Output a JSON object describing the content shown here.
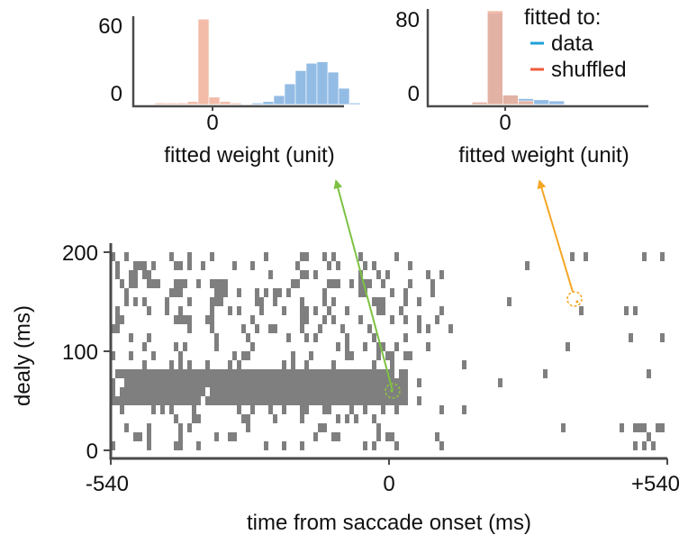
{
  "chart_data": [
    {
      "type": "bar",
      "panel": "histogram-left",
      "xlabel": "fitted weight (unit)",
      "x_ticks": [
        "0"
      ],
      "y_ticks": [
        "0",
        "60"
      ],
      "ylim": [
        0,
        60
      ],
      "bin_edges": [
        -1.0,
        -0.8,
        -0.6,
        -0.4,
        -0.2,
        0.0,
        0.2,
        0.4,
        0.6,
        0.8,
        1.0,
        1.2,
        1.4,
        1.6,
        1.8,
        2.0,
        2.2,
        2.4,
        2.6,
        2.8,
        3.0
      ],
      "series": [
        {
          "name": "data",
          "color": "#80b0e0",
          "values": [
            0,
            0,
            0,
            0,
            0,
            0,
            0,
            0,
            0,
            0,
            1,
            2,
            6,
            14,
            23,
            28,
            29,
            22,
            11,
            1
          ]
        },
        {
          "name": "shuffled",
          "color": "#f0b09a",
          "values": [
            0,
            1,
            1,
            1,
            2,
            58,
            5,
            2,
            1,
            0,
            0,
            0,
            0,
            0,
            0,
            0,
            0,
            0,
            0,
            0
          ]
        }
      ]
    },
    {
      "type": "bar",
      "panel": "histogram-right",
      "xlabel": "fitted weight (unit)",
      "x_ticks": [
        "0"
      ],
      "y_ticks": [
        "0",
        "80"
      ],
      "ylim": [
        0,
        80
      ],
      "bin_edges": [
        -0.8,
        -0.6,
        -0.4,
        -0.2,
        0.0,
        0.2,
        0.4,
        0.6,
        0.8,
        1.0,
        1.2,
        1.4,
        1.6
      ],
      "series": [
        {
          "name": "data",
          "color": "#80b0e0",
          "values": [
            0,
            0,
            2,
            78,
            8,
            5,
            4,
            3,
            0,
            0,
            0,
            0
          ]
        },
        {
          "name": "shuffled",
          "color": "#f0b09a",
          "values": [
            0,
            0,
            2,
            80,
            8,
            3,
            0,
            0,
            0,
            0,
            0,
            0
          ]
        }
      ],
      "legend": {
        "title": "fitted to:",
        "entries": [
          {
            "label": "data",
            "color": "#1fa0d8"
          },
          {
            "label": "shuffled",
            "color": "#f05a3c"
          }
        ],
        "placement": "top-right"
      }
    },
    {
      "type": "heatmap",
      "panel": "raster",
      "xlabel": "time from saccade onset (ms)",
      "ylabel": "dealy (ms)",
      "xlim": [
        -540,
        540
      ],
      "ylim": [
        0,
        200
      ],
      "x_ticks": [
        "-540",
        "0",
        "+540"
      ],
      "y_ticks": [
        "0",
        "100",
        "200"
      ],
      "cell_color": "#7f7f7f",
      "dense_band": {
        "y_range": [
          45,
          85
        ],
        "x_range": [
          -540,
          40
        ]
      },
      "highlighted_points": [
        {
          "x": 5,
          "y": 60,
          "color": "#8cc63f",
          "target": "histogram-left"
        },
        {
          "x": 365,
          "y": 150,
          "color": "#f5a623",
          "target": "histogram-right"
        }
      ]
    }
  ],
  "labels": {
    "left_y_top": "60",
    "left_y_bottom": "0",
    "left_x_tick": "0",
    "left_xlabel": "fitted weight (unit)",
    "right_y_top": "80",
    "right_y_bottom": "0",
    "right_x_tick": "0",
    "right_xlabel": "fitted weight (unit)",
    "legend_title": "fitted to:",
    "legend_data": "data",
    "legend_shuffled": "shuffled",
    "raster_y_200": "200",
    "raster_y_100": "100",
    "raster_y_0": "0",
    "raster_ylabel": "dealy (ms)",
    "raster_x_left": "-540",
    "raster_x_mid": "0",
    "raster_x_right": "+540",
    "raster_xlabel": "time from saccade onset (ms)"
  }
}
